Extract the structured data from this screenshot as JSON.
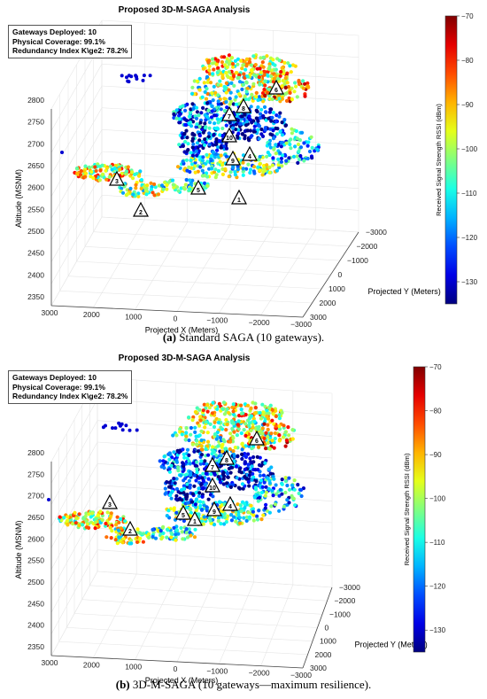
{
  "chart_data": [
    {
      "type": "scatter",
      "panel": "a",
      "title": "Proposed 3D-M-SAGA Analysis",
      "caption_label": "(a)",
      "caption_text": "Standard SAGA (10 gateways).",
      "xlabel": "Projected X (Meters)",
      "ylabel": "Projected Y (Meters)",
      "zlabel": "Altitude (MSNM)",
      "xlim": [
        -3000,
        3000
      ],
      "ylim": [
        -3000,
        3000
      ],
      "zlim": [
        2350,
        2800
      ],
      "x_ticks": [
        "3000",
        "2000",
        "1000",
        "0",
        "−1000",
        "−2000",
        "−3000"
      ],
      "y_ticks": [
        "−3000",
        "−2000",
        "−1000",
        "0",
        "1000",
        "2000",
        "3000"
      ],
      "z_ticks": [
        "2350",
        "2400",
        "2450",
        "2500",
        "2550",
        "2600",
        "2650",
        "2700",
        "2750",
        "2800"
      ],
      "grid": true,
      "colorbar": {
        "label": "Received Signal Strength RSSI (dBm)",
        "range": [
          -135,
          -70
        ],
        "ticks": [
          "−70",
          "−80",
          "−90",
          "−100",
          "−110",
          "−120",
          "−130"
        ],
        "colormap": "jet"
      },
      "info": {
        "line1": "Gateways Deployed: 10",
        "line2": "Physical Coverage: 99.1%",
        "line3": "Redundancy Index K\\ge2: 78.2%"
      },
      "gateways": [
        {
          "id": "1",
          "x": 270,
          "y": 224
        },
        {
          "id": "2",
          "x": 159,
          "y": 238
        },
        {
          "id": "3",
          "x": 132,
          "y": 203
        },
        {
          "id": "4",
          "x": 282,
          "y": 175
        },
        {
          "id": "5",
          "x": 224,
          "y": 213
        },
        {
          "id": "6",
          "x": 312,
          "y": 100
        },
        {
          "id": "7",
          "x": 259,
          "y": 130
        },
        {
          "id": "8",
          "x": 275,
          "y": 121
        },
        {
          "id": "9",
          "x": 263,
          "y": 180
        },
        {
          "id": "10",
          "x": 259,
          "y": 154
        }
      ]
    },
    {
      "type": "scatter",
      "panel": "b",
      "title": "Proposed 3D-M-SAGA Analysis",
      "caption_label": "(b)",
      "caption_text": "3D-M-SAGA (10 gateways—maximum resilience).",
      "xlabel": "Projected X (Meters)",
      "ylabel": "Projected Y (Meters)",
      "zlabel": "Altitude (MSNM)",
      "xlim": [
        -3000,
        3000
      ],
      "ylim": [
        -3000,
        3000
      ],
      "zlim": [
        2350,
        2800
      ],
      "x_ticks": [
        "3000",
        "2000",
        "1000",
        "0",
        "−1000",
        "−2000",
        "−3000"
      ],
      "y_ticks": [
        "−3000",
        "−2000",
        "−1000",
        "0",
        "1000",
        "2000",
        "3000"
      ],
      "z_ticks": [
        "2350",
        "2400",
        "2450",
        "2500",
        "2550",
        "2600",
        "2650",
        "2700",
        "2750",
        "2800"
      ],
      "grid": true,
      "colorbar": {
        "label": "Received Signal Strength RSSI (dBm)",
        "range": [
          -135,
          -70
        ],
        "ticks": [
          "−70",
          "−80",
          "−90",
          "−100",
          "−110",
          "−120",
          "−130"
        ],
        "colormap": "jet"
      },
      "info": {
        "line1": "Gateways Deployed: 10",
        "line2": "Physical Coverage: 99.1%",
        "line3": "Redundancy Index K\\ge2: 78.2%"
      },
      "gateways": [
        {
          "id": "1",
          "x": 220,
          "y": 587
        },
        {
          "id": "2",
          "x": 147,
          "y": 598
        },
        {
          "id": "3",
          "x": 124,
          "y": 568
        },
        {
          "id": "4",
          "x": 260,
          "y": 570
        },
        {
          "id": "5",
          "x": 207,
          "y": 580
        },
        {
          "id": "6",
          "x": 290,
          "y": 496
        },
        {
          "id": "7",
          "x": 240,
          "y": 526
        },
        {
          "id": "8",
          "x": 256,
          "y": 518
        },
        {
          "id": "9",
          "x": 242,
          "y": 576
        },
        {
          "id": "10",
          "x": 240,
          "y": 549
        }
      ]
    }
  ]
}
